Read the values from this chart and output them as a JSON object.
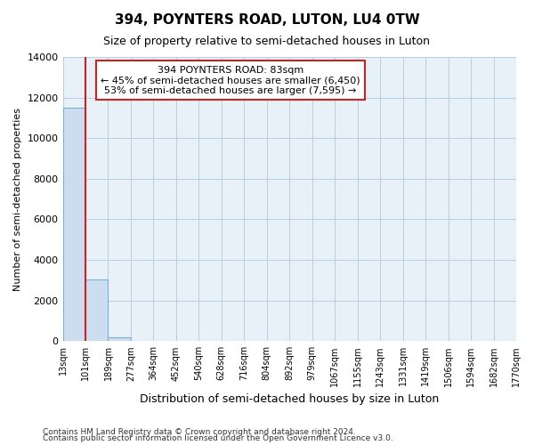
{
  "title": "394, POYNTERS ROAD, LUTON, LU4 0TW",
  "subtitle": "Size of property relative to semi-detached houses in Luton",
  "xlabel": "Distribution of semi-detached houses by size in Luton",
  "ylabel": "Number of semi-detached properties",
  "bar_values": [
    11500,
    3050,
    200,
    0,
    0,
    0,
    0,
    0,
    0,
    0,
    0,
    0,
    0,
    0,
    0,
    0,
    0,
    0,
    0,
    0
  ],
  "bar_labels": [
    "13sqm",
    "101sqm",
    "189sqm",
    "277sqm",
    "364sqm",
    "452sqm",
    "540sqm",
    "628sqm",
    "716sqm",
    "804sqm",
    "892sqm",
    "979sqm",
    "1067sqm",
    "1155sqm",
    "1243sqm",
    "1331sqm",
    "1419sqm",
    "1506sqm",
    "1594sqm",
    "1682sqm",
    "1770sqm"
  ],
  "ylim": [
    0,
    14000
  ],
  "bar_color": "#ccddf0",
  "bar_edge_color": "#7ab0d4",
  "vline_color": "#cc2222",
  "annotation_text": "394 POYNTERS ROAD: 83sqm\n← 45% of semi-detached houses are smaller (6,450)\n53% of semi-detached houses are larger (7,595) →",
  "annotation_box_color": "#cc2222",
  "footer_line1": "Contains HM Land Registry data © Crown copyright and database right 2024.",
  "footer_line2": "Contains public sector information licensed under the Open Government Licence v3.0.",
  "background_color": "#ffffff",
  "plot_bg_color": "#e8f0f8",
  "grid_color": "#b8cce4",
  "title_fontsize": 11,
  "subtitle_fontsize": 9,
  "ylabel_fontsize": 8,
  "xlabel_fontsize": 9,
  "ytick_fontsize": 8,
  "xtick_fontsize": 7
}
